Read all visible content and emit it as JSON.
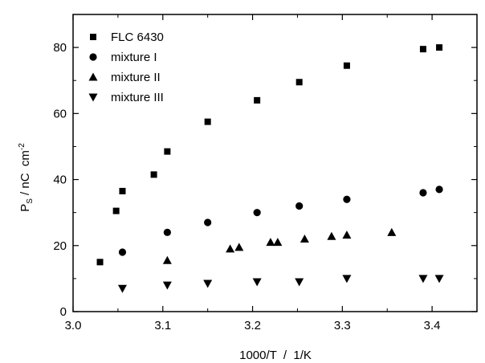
{
  "chart_data": {
    "type": "scatter",
    "xlabel": "1000/T  /  1/K",
    "ylabel": {
      "main": "P",
      "sub": "S",
      "unit": " / nC  cm",
      "sup": "-2"
    },
    "xlim": [
      3.0,
      3.45
    ],
    "ylim": [
      0,
      90
    ],
    "x_ticks": [
      3.0,
      3.1,
      3.2,
      3.3,
      3.4
    ],
    "x_tick_labels": [
      "3.0",
      "3.1",
      "3.2",
      "3.3",
      "3.4"
    ],
    "y_ticks": [
      0,
      20,
      40,
      60,
      80
    ],
    "y_tick_labels": [
      "0",
      "20",
      "40",
      "60",
      "80"
    ],
    "grid": false,
    "legend_position": "top-left",
    "series": [
      {
        "name": "FLC 6430",
        "marker": "square",
        "x": [
          3.03,
          3.048,
          3.055,
          3.09,
          3.105,
          3.15,
          3.205,
          3.252,
          3.305,
          3.39,
          3.408
        ],
        "y": [
          15,
          30.5,
          36.5,
          41.5,
          48.5,
          57.5,
          64,
          69.5,
          74.5,
          79.5,
          80
        ]
      },
      {
        "name": "mixture I",
        "marker": "circle",
        "x": [
          3.055,
          3.105,
          3.15,
          3.205,
          3.252,
          3.305,
          3.39,
          3.408
        ],
        "y": [
          18,
          24,
          27,
          30,
          32,
          34,
          36,
          37
        ]
      },
      {
        "name": "mixture II",
        "marker": "triangle-up",
        "x": [
          3.105,
          3.175,
          3.185,
          3.22,
          3.228,
          3.258,
          3.288,
          3.305,
          3.355
        ],
        "y": [
          15.5,
          19,
          19.5,
          21,
          21,
          22,
          22.8,
          23.2,
          24
        ]
      },
      {
        "name": "mixture III",
        "marker": "triangle-down",
        "x": [
          3.055,
          3.105,
          3.15,
          3.205,
          3.252,
          3.305,
          3.39,
          3.408
        ],
        "y": [
          7,
          8,
          8.5,
          9,
          9,
          10,
          10,
          10
        ]
      }
    ]
  }
}
